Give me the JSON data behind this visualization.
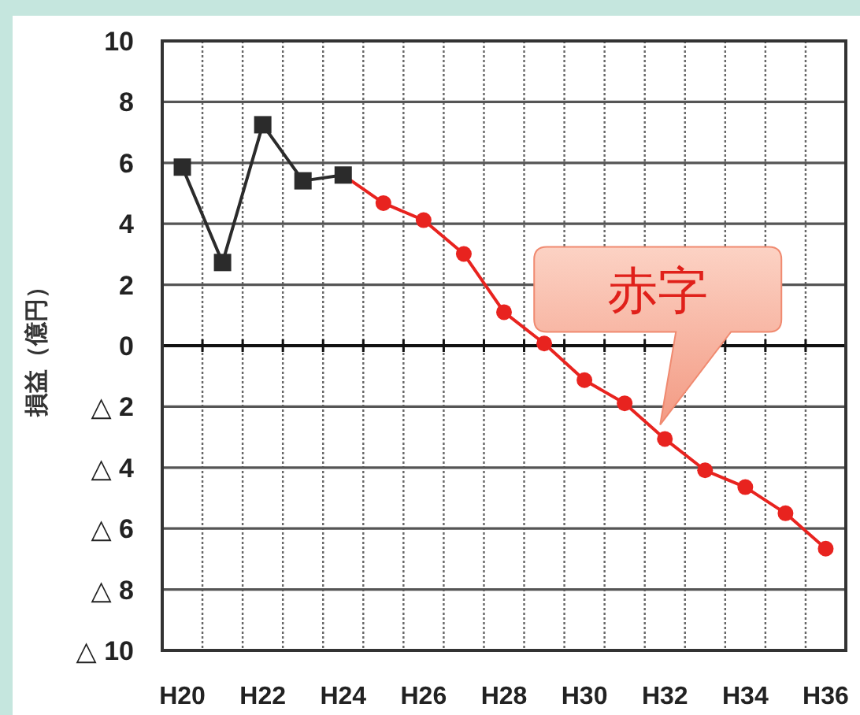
{
  "chart_data": {
    "type": "line",
    "ylabel": "損益（億円）",
    "categories": [
      "H20",
      null,
      "H22",
      null,
      "H24",
      null,
      "H26",
      null,
      "H28",
      null,
      "H30",
      null,
      "H32",
      null,
      "H34",
      null,
      "H36"
    ],
    "series": [
      {
        "color": "#e8231f",
        "marker": "circle",
        "values": [
          null,
          null,
          null,
          null,
          5.6,
          4.68,
          4.12,
          3.01,
          1.1,
          0.07,
          -1.13,
          -1.89,
          -3.06,
          -4.09,
          -4.64,
          -5.5,
          -6.66
        ]
      },
      {
        "color": "#2b2b2b",
        "marker": "square",
        "values": [
          5.86,
          2.73,
          7.25,
          5.41,
          5.6,
          null,
          null,
          null,
          null,
          null,
          null,
          null,
          null,
          null,
          null,
          null,
          null
        ]
      }
    ],
    "ylim": [
      -10,
      10
    ],
    "yticks": [
      10,
      8,
      6,
      4,
      2,
      0,
      {
        "value": -2,
        "label": "△ 2"
      },
      {
        "value": -4,
        "label": "△ 4"
      },
      {
        "value": -6,
        "label": "△ 6"
      },
      {
        "value": -8,
        "label": "△ 8"
      },
      {
        "value": -10,
        "label": "△ 10"
      }
    ],
    "grid": true,
    "annotations": [
      {
        "text": "赤字",
        "x": "H32",
        "y": -3.06
      }
    ]
  }
}
